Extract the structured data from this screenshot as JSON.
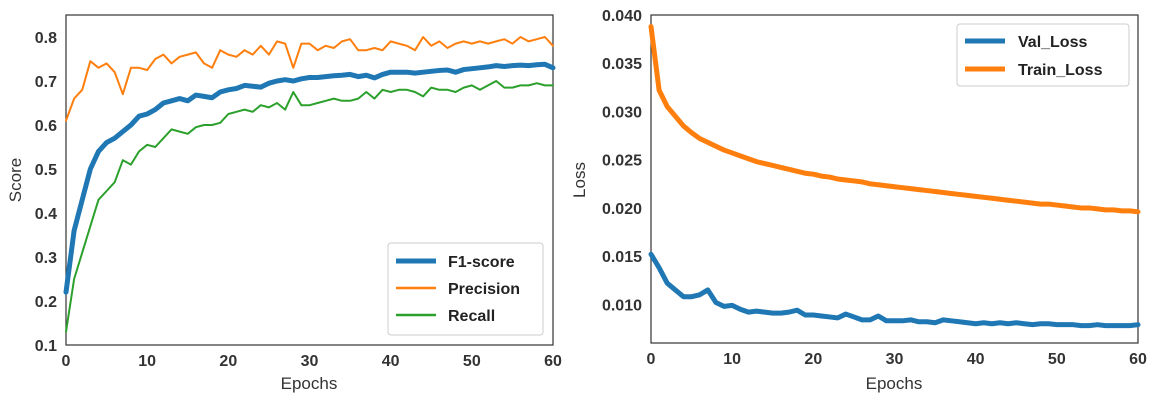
{
  "chart_data": [
    {
      "type": "line",
      "xlabel": "Epochs",
      "ylabel": "Score",
      "xlim": [
        0,
        60
      ],
      "ylim": [
        0.1,
        0.85
      ],
      "xticks": [
        "0",
        "10",
        "20",
        "30",
        "40",
        "50",
        "60"
      ],
      "yticks": [
        "0.1",
        "0.2",
        "0.3",
        "0.4",
        "0.5",
        "0.6",
        "0.7",
        "0.8"
      ],
      "grid": false,
      "legend_position": "lower-right",
      "x": [
        0,
        1,
        2,
        3,
        4,
        5,
        6,
        7,
        8,
        9,
        10,
        11,
        12,
        13,
        14,
        15,
        16,
        17,
        18,
        19,
        20,
        21,
        22,
        23,
        24,
        25,
        26,
        27,
        28,
        29,
        30,
        31,
        32,
        33,
        34,
        35,
        36,
        37,
        38,
        39,
        40,
        41,
        42,
        43,
        44,
        45,
        46,
        47,
        48,
        49,
        50,
        51,
        52,
        53,
        54,
        55,
        56,
        57,
        58,
        59,
        60
      ],
      "series": [
        {
          "name": "F1-score",
          "color": "#1f77b4",
          "width": 5,
          "values": [
            0.22,
            0.36,
            0.43,
            0.5,
            0.54,
            0.56,
            0.57,
            0.585,
            0.6,
            0.62,
            0.625,
            0.635,
            0.65,
            0.655,
            0.66,
            0.655,
            0.668,
            0.665,
            0.662,
            0.675,
            0.68,
            0.683,
            0.69,
            0.688,
            0.686,
            0.695,
            0.7,
            0.703,
            0.7,
            0.705,
            0.708,
            0.708,
            0.71,
            0.712,
            0.713,
            0.715,
            0.71,
            0.713,
            0.707,
            0.715,
            0.72,
            0.72,
            0.72,
            0.718,
            0.72,
            0.722,
            0.724,
            0.725,
            0.72,
            0.726,
            0.728,
            0.73,
            0.732,
            0.735,
            0.733,
            0.735,
            0.736,
            0.735,
            0.737,
            0.738,
            0.73
          ]
        },
        {
          "name": "Precision",
          "color": "#ff7f0e",
          "width": 2,
          "values": [
            0.61,
            0.66,
            0.68,
            0.745,
            0.73,
            0.74,
            0.72,
            0.67,
            0.73,
            0.73,
            0.725,
            0.75,
            0.76,
            0.74,
            0.755,
            0.76,
            0.765,
            0.74,
            0.73,
            0.77,
            0.76,
            0.755,
            0.77,
            0.76,
            0.78,
            0.76,
            0.79,
            0.785,
            0.73,
            0.785,
            0.785,
            0.77,
            0.78,
            0.775,
            0.79,
            0.795,
            0.77,
            0.77,
            0.775,
            0.77,
            0.79,
            0.785,
            0.78,
            0.77,
            0.8,
            0.78,
            0.79,
            0.775,
            0.785,
            0.79,
            0.785,
            0.79,
            0.785,
            0.79,
            0.795,
            0.785,
            0.8,
            0.79,
            0.795,
            0.8,
            0.78
          ]
        },
        {
          "name": "Recall",
          "color": "#2ca02c",
          "width": 2,
          "values": [
            0.13,
            0.25,
            0.31,
            0.37,
            0.43,
            0.45,
            0.47,
            0.52,
            0.51,
            0.54,
            0.555,
            0.55,
            0.57,
            0.59,
            0.585,
            0.58,
            0.595,
            0.6,
            0.6,
            0.605,
            0.625,
            0.63,
            0.635,
            0.63,
            0.645,
            0.64,
            0.65,
            0.635,
            0.675,
            0.645,
            0.645,
            0.65,
            0.655,
            0.66,
            0.655,
            0.655,
            0.66,
            0.675,
            0.66,
            0.68,
            0.675,
            0.68,
            0.68,
            0.675,
            0.665,
            0.685,
            0.68,
            0.68,
            0.675,
            0.685,
            0.69,
            0.68,
            0.69,
            0.7,
            0.685,
            0.685,
            0.69,
            0.69,
            0.695,
            0.69,
            0.69
          ]
        }
      ]
    },
    {
      "type": "line",
      "xlabel": "Epochs",
      "ylabel": "Loss",
      "xlim": [
        0,
        60
      ],
      "ylim": [
        0.006,
        0.04
      ],
      "xticks": [
        "0",
        "10",
        "20",
        "30",
        "40",
        "50",
        "60"
      ],
      "yticks": [
        "0.010",
        "0.015",
        "0.020",
        "0.025",
        "0.030",
        "0.035",
        "0.040"
      ],
      "grid": false,
      "legend_position": "upper-right",
      "x": [
        0,
        1,
        2,
        3,
        4,
        5,
        6,
        7,
        8,
        9,
        10,
        11,
        12,
        13,
        14,
        15,
        16,
        17,
        18,
        19,
        20,
        21,
        22,
        23,
        24,
        25,
        26,
        27,
        28,
        29,
        30,
        31,
        32,
        33,
        34,
        35,
        36,
        37,
        38,
        39,
        40,
        41,
        42,
        43,
        44,
        45,
        46,
        47,
        48,
        49,
        50,
        51,
        52,
        53,
        54,
        55,
        56,
        57,
        58,
        59,
        60
      ],
      "series": [
        {
          "name": "Val_Loss",
          "color": "#1f77b4",
          "width": 5,
          "values": [
            0.0152,
            0.0138,
            0.0122,
            0.0115,
            0.0108,
            0.0108,
            0.011,
            0.0115,
            0.0102,
            0.0098,
            0.0099,
            0.0095,
            0.0092,
            0.0093,
            0.0092,
            0.0091,
            0.0091,
            0.0092,
            0.0094,
            0.0089,
            0.0089,
            0.0088,
            0.0087,
            0.0086,
            0.009,
            0.0087,
            0.0084,
            0.0084,
            0.0088,
            0.0083,
            0.0083,
            0.0083,
            0.0084,
            0.0082,
            0.0082,
            0.0081,
            0.0084,
            0.0083,
            0.0082,
            0.0081,
            0.008,
            0.0081,
            0.008,
            0.0081,
            0.008,
            0.0081,
            0.008,
            0.0079,
            0.008,
            0.008,
            0.0079,
            0.0079,
            0.0079,
            0.0078,
            0.0078,
            0.0079,
            0.0078,
            0.0078,
            0.0078,
            0.0078,
            0.0079
          ]
        },
        {
          "name": "Train_Loss",
          "color": "#ff7f0e",
          "width": 5,
          "values": [
            0.0388,
            0.0322,
            0.0305,
            0.0295,
            0.0285,
            0.0278,
            0.0272,
            0.0268,
            0.0264,
            0.026,
            0.0257,
            0.0254,
            0.0251,
            0.0248,
            0.0246,
            0.0244,
            0.0242,
            0.024,
            0.0238,
            0.0236,
            0.0235,
            0.0233,
            0.0232,
            0.023,
            0.0229,
            0.0228,
            0.0227,
            0.0225,
            0.0224,
            0.0223,
            0.0222,
            0.0221,
            0.022,
            0.0219,
            0.0218,
            0.0217,
            0.0216,
            0.0215,
            0.0214,
            0.0213,
            0.0212,
            0.0211,
            0.021,
            0.0209,
            0.0208,
            0.0207,
            0.0206,
            0.0205,
            0.0204,
            0.0204,
            0.0203,
            0.0202,
            0.0201,
            0.02,
            0.02,
            0.0199,
            0.0198,
            0.0198,
            0.0197,
            0.0197,
            0.0196
          ]
        }
      ]
    }
  ]
}
